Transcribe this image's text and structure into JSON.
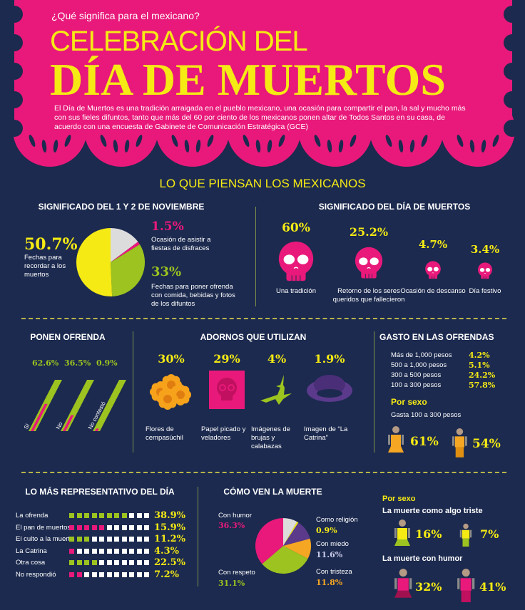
{
  "header": {
    "question": "¿Qué significa para el mexicano?",
    "title_line1": "CELEBRACIÓN DEL",
    "title_line2": "DÍA DE MUERTOS",
    "intro": "El Día de Muertos es una tradición arraigada en el pueblo mexicano, una ocasión para compartir el pan, la sal y mucho más con sus fieles difuntos, tanto que más del 60 por ciento de los mexicanos ponen altar de Todos Santos en su casa, de acuerdo con una encuesta de Gabinete de Comunicación Estratégica (GCE)"
  },
  "section_title": "LO QUE PIENSAN LOS MEXICANOS",
  "colors": {
    "background": "#1c2a4f",
    "pink": "#e8197a",
    "yellow": "#f5ea14",
    "green": "#9cc31f",
    "gray": "#dcdcdc",
    "purple": "#5b3a8c",
    "orange": "#f5a623"
  },
  "noviembre": {
    "title": "SIGNIFICADO DEL 1 Y 2 DE NOVIEMBRE",
    "slices": [
      {
        "value": "50.7%",
        "num": 50.7,
        "label": "Fechas para recordar a los muertos",
        "color": "#f5ea14"
      },
      {
        "value": "1.5%",
        "num": 1.5,
        "label": "Ocasión de asistir a fiestas de disfraces",
        "color": "#e8197a"
      },
      {
        "value": "33%",
        "num": 33,
        "label": "Fechas para poner ofrenda con comida, bebidas y fotos de los difuntos",
        "color": "#9cc31f"
      }
    ]
  },
  "significado": {
    "title": "SIGNIFICADO DEL DÍA DE MUERTOS",
    "items": [
      {
        "value": "60%",
        "label": "Una tradición"
      },
      {
        "value": "25.2%",
        "label": "Retorno de los seres queridos que fallecieron"
      },
      {
        "value": "4.7%",
        "label": "Ocasión de descanso"
      },
      {
        "value": "3.4%",
        "label": "Día festivo"
      }
    ]
  },
  "ofrenda": {
    "title": "PONEN OFRENDA",
    "items": [
      {
        "value": "62.6%",
        "num": 62.6,
        "label": "Sí"
      },
      {
        "value": "36.5%",
        "num": 36.5,
        "label": "No"
      },
      {
        "value": "0.9%",
        "num": 0.9,
        "label": "No contestó"
      }
    ]
  },
  "adornos": {
    "title": "ADORNOS QUE UTILIZAN",
    "items": [
      {
        "value": "30%",
        "label": "Flores de cempasúchil",
        "icon": "marigold-flowers-icon"
      },
      {
        "value": "29%",
        "label": "Papel picado y veladores",
        "icon": "papel-picado-skull-icon"
      },
      {
        "value": "4%",
        "label": "Imágenes de brujas y calabazas",
        "icon": "witch-on-broom-icon"
      },
      {
        "value": "1.9%",
        "label": "Imagen de “La Catrina”",
        "icon": "catrina-hat-icon"
      }
    ]
  },
  "gasto": {
    "title": "GASTO EN LAS OFRENDAS",
    "rows": [
      {
        "label": "Más de 1,000 pesos",
        "value": "4.2%"
      },
      {
        "label": "500 a 1,000 pesos",
        "value": "5.1%"
      },
      {
        "label": "300 a 500 pesos",
        "value": "24.2%"
      },
      {
        "label": "100 a 300 pesos",
        "value": "57.8%"
      }
    ],
    "por_sexo": "Por sexo",
    "subtitle": "Gasta 100 a 300 pesos",
    "female": "61%",
    "male": "54%"
  },
  "representativo": {
    "title": "LO MÁS REPRESENTATIVO DEL DÍA",
    "rows": [
      {
        "label": "La ofrenda",
        "value": "38.9%",
        "filled": 8,
        "color": "#9cc31f"
      },
      {
        "label": "El pan de muertos",
        "value": "15.9%",
        "filled": 5,
        "color": "#e8197a"
      },
      {
        "label": "El culto a la muerte",
        "value": "11.2%",
        "filled": 3,
        "color": "#9cc31f"
      },
      {
        "label": "La Catrina",
        "value": "4.3%",
        "filled": 1,
        "color": "#e8197a"
      },
      {
        "label": "Otra cosa",
        "value": "22.5%",
        "filled": 4,
        "color": "#9cc31f"
      },
      {
        "label": "No respondió",
        "value": "7.2%",
        "filled": 2,
        "color": "#e8197a"
      }
    ],
    "total_squares": 11
  },
  "como_ven": {
    "title": "CÓMO VEN LA MUERTE",
    "slices": [
      {
        "label": "Como religión",
        "value": "0.9%",
        "num": 0.9,
        "color": "#f5ea14"
      },
      {
        "label": "Con miedo",
        "value": "11.6%",
        "num": 11.6,
        "color": "#5b3a8c",
        "text_color": "#c9cbe8"
      },
      {
        "label": "Con tristeza",
        "value": "11.8%",
        "num": 11.8,
        "color": "#f5a623"
      },
      {
        "label": "Con respeto",
        "value": "31.1%",
        "num": 31.1,
        "color": "#9cc31f"
      },
      {
        "label": "Con humor",
        "value": "36.3%",
        "num": 36.3,
        "color": "#e8197a"
      }
    ]
  },
  "muerte_sexo": {
    "por_sexo": "Por sexo",
    "triste_title": "La muerte como algo triste",
    "triste_female": "16%",
    "triste_male": "7%",
    "humor_title": "La muerte con humor",
    "humor_female": "32%",
    "humor_male": "41%"
  }
}
